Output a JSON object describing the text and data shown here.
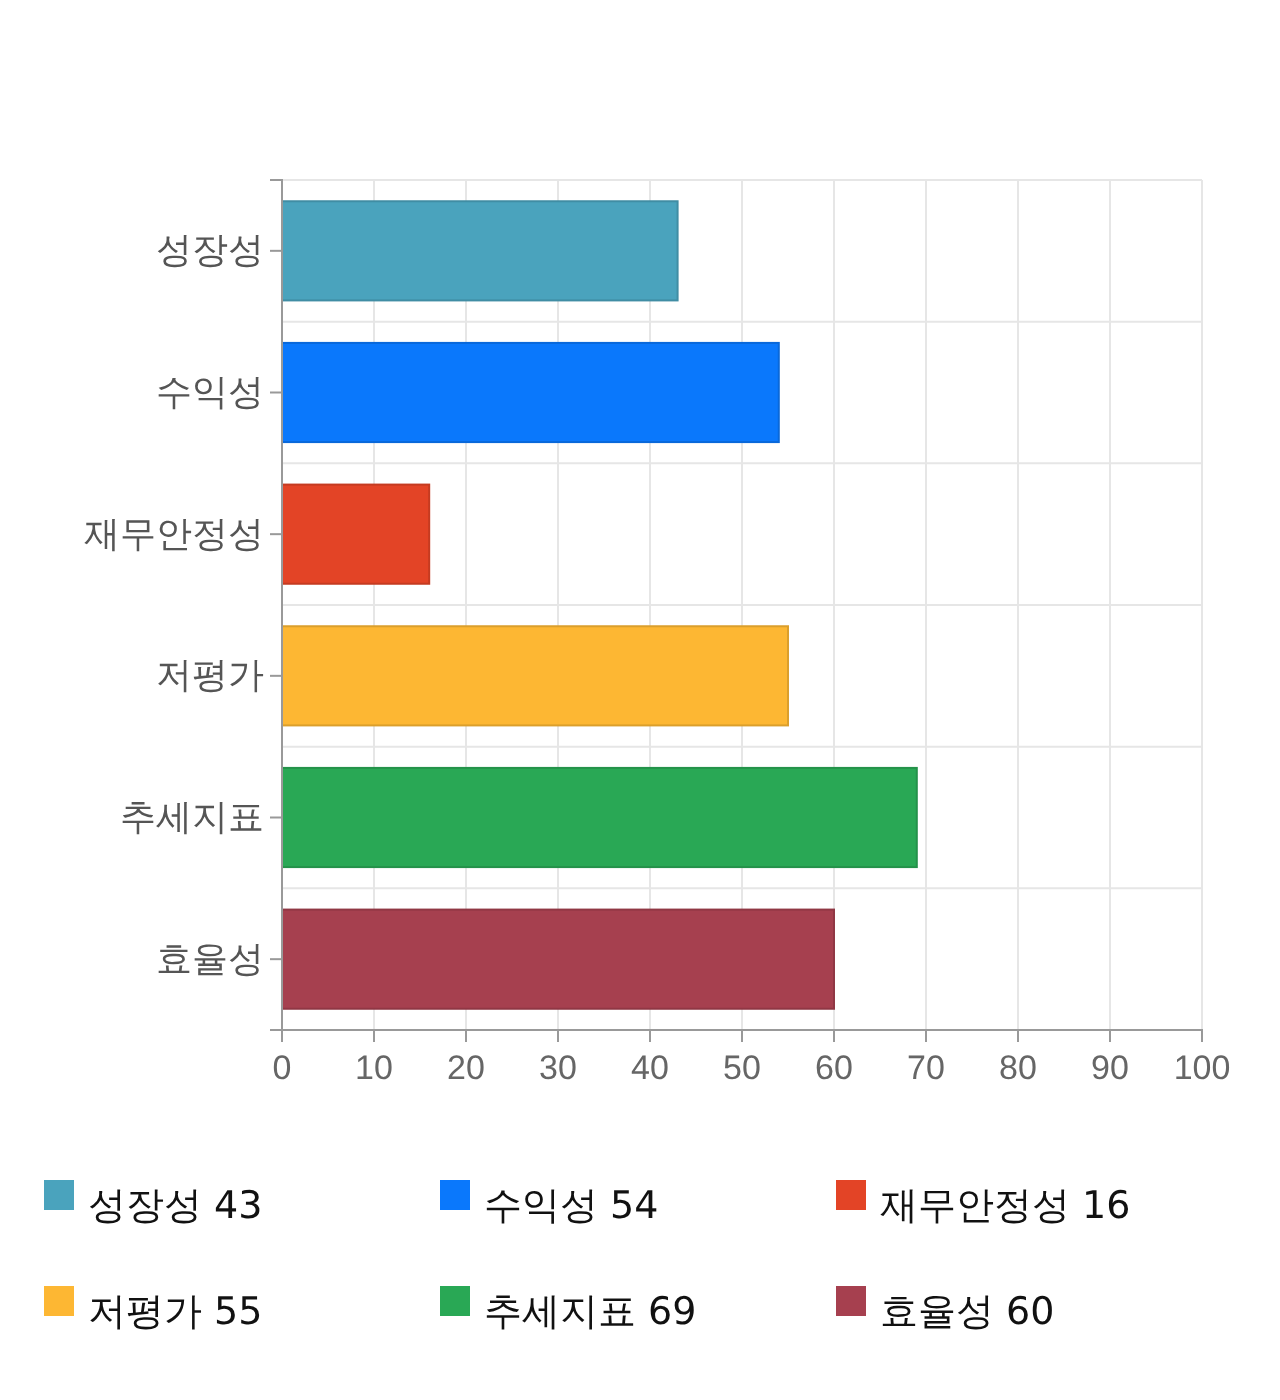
{
  "chart_data": {
    "type": "bar",
    "orientation": "horizontal",
    "stacked": true,
    "categories": [
      "성장성",
      "수익성",
      "재무안정성",
      "저평가",
      "추세지표",
      "효율성"
    ],
    "series": [
      {
        "name": "성장성 43",
        "color": "#4aa3bd",
        "values": [
          43,
          null,
          null,
          null,
          null,
          null
        ]
      },
      {
        "name": "수익성 54",
        "color": "#0a78fc",
        "values": [
          null,
          54,
          null,
          null,
          null,
          null
        ]
      },
      {
        "name": "재무안정성 16",
        "color": "#e34426",
        "values": [
          null,
          null,
          16,
          null,
          null,
          null
        ]
      },
      {
        "name": "저평가 55",
        "color": "#fdb733",
        "values": [
          null,
          null,
          null,
          55,
          null,
          null
        ]
      },
      {
        "name": "추세지표 69",
        "color": "#29a855",
        "values": [
          null,
          null,
          null,
          null,
          69,
          null
        ]
      },
      {
        "name": "효율성 60",
        "color": "#a6404f",
        "values": [
          null,
          null,
          null,
          null,
          null,
          60
        ]
      }
    ],
    "xlim": [
      0,
      100
    ],
    "xticks": [
      0,
      10,
      20,
      30,
      40,
      50,
      60,
      70,
      80,
      90,
      100
    ],
    "grid": true,
    "legend": "bottom"
  }
}
